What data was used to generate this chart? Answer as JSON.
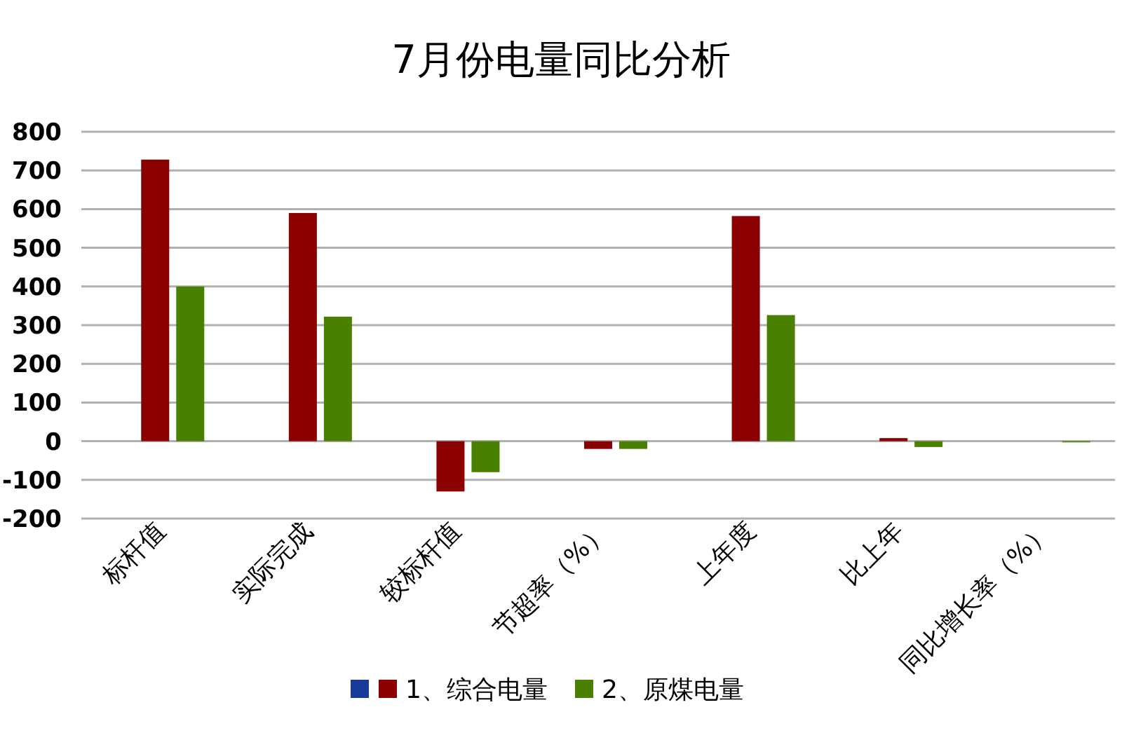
{
  "chart_data": {
    "type": "bar",
    "title": "7月份电量同比分析",
    "categories": [
      "标杆值",
      "实际完成",
      "较标杆值",
      "节超率（%）",
      "上年度",
      "比上年",
      "同比增长率（%）"
    ],
    "series": [
      {
        "color": "#1a3a9a",
        "values": [
          null,
          null,
          null,
          null,
          null,
          null,
          null
        ]
      },
      {
        "name": "1、综合电量",
        "color": "#8b0000",
        "values": [
          728,
          590,
          -130,
          -20,
          582,
          8,
          0
        ]
      },
      {
        "name": "2、原煤电量",
        "color": "#4a8000",
        "values": [
          400,
          322,
          -80,
          -20,
          326,
          -15,
          -3
        ]
      }
    ],
    "ylim": [
      -200,
      800
    ],
    "yticks": [
      -200,
      -100,
      0,
      100,
      200,
      300,
      400,
      500,
      600,
      700,
      800
    ],
    "grid": "y",
    "legend": "bottom"
  }
}
